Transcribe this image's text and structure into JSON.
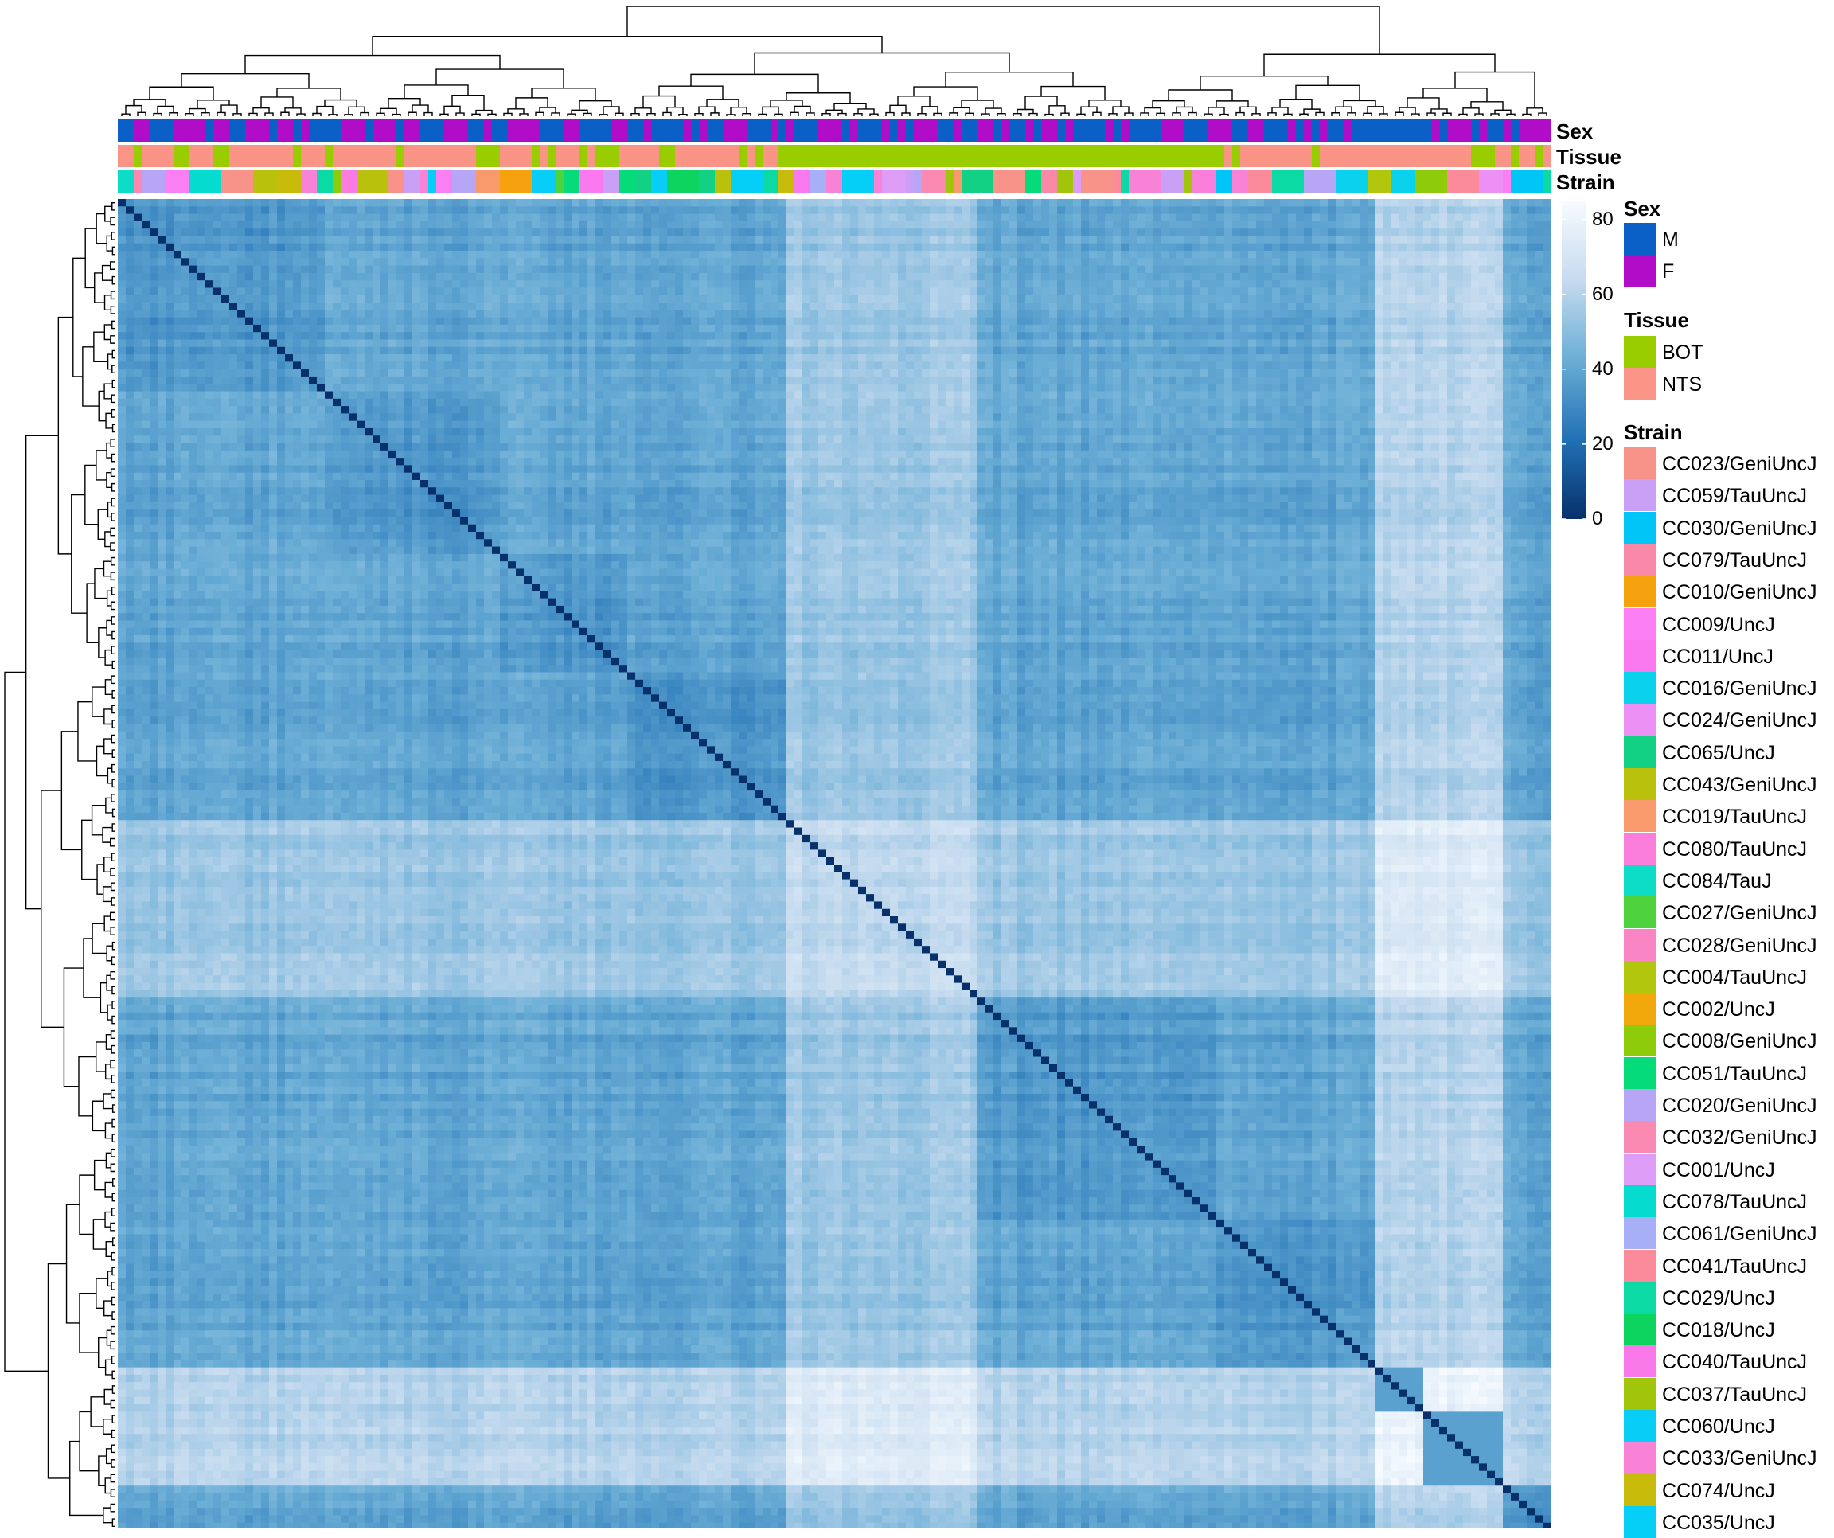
{
  "chart_data": {
    "type": "heatmap",
    "title": "",
    "subtitle": "",
    "xlabel": "",
    "ylabel": "",
    "colorbar": {
      "ticks": [
        0,
        20,
        40,
        60,
        80
      ],
      "min": 0,
      "max": 85,
      "colors": [
        "#08306b",
        "#2171b5",
        "#6baed6",
        "#c6dbef",
        "#f7fbff"
      ]
    },
    "row_dendrogram": true,
    "column_dendrogram": true,
    "annotations": [
      {
        "name": "Sex"
      },
      {
        "name": "Tissue"
      },
      {
        "name": "Strain"
      }
    ],
    "legends": {
      "sex": {
        "title": "Sex",
        "entries": [
          {
            "label": "M",
            "color": "#0a60c7"
          },
          {
            "label": "F",
            "color": "#b10dc9"
          }
        ]
      },
      "tissue": {
        "title": "Tissue",
        "entries": [
          {
            "label": "BOT",
            "color": "#9acd00"
          },
          {
            "label": "NTS",
            "color": "#fa9486"
          }
        ]
      },
      "strain": {
        "title": "Strain",
        "entries": [
          {
            "label": "CC023/GeniUncJ",
            "color": "#f8938a"
          },
          {
            "label": "CC059/TauUncJ",
            "color": "#c9a0f6"
          },
          {
            "label": "CC030/GeniUncJ",
            "color": "#00c5f7"
          },
          {
            "label": "CC079/TauUncJ",
            "color": "#fa88a8"
          },
          {
            "label": "CC010/GeniUncJ",
            "color": "#f6a20f"
          },
          {
            "label": "CC009/UncJ",
            "color": "#f97ff3"
          },
          {
            "label": "CC011/UncJ",
            "color": "#fb79ef"
          },
          {
            "label": "CC016/GeniUncJ",
            "color": "#0ad1ec"
          },
          {
            "label": "CC024/GeniUncJ",
            "color": "#ec90f6"
          },
          {
            "label": "CC065/UncJ",
            "color": "#12d185"
          },
          {
            "label": "CC043/GeniUncJ",
            "color": "#b9c10c"
          },
          {
            "label": "CC019/TauUncJ",
            "color": "#f99a6c"
          },
          {
            "label": "CC080/TauUncJ",
            "color": "#fb7ddc"
          },
          {
            "label": "CC084/TauJ",
            "color": "#0ddcc6"
          },
          {
            "label": "CC027/GeniUncJ",
            "color": "#4ed23d"
          },
          {
            "label": "CC028/GeniUncJ",
            "color": "#fa85c4"
          },
          {
            "label": "CC004/TauUncJ",
            "color": "#b1c60c"
          },
          {
            "label": "CC002/UncJ",
            "color": "#f2a80a"
          },
          {
            "label": "CC008/GeniUncJ",
            "color": "#8ecb0a"
          },
          {
            "label": "CC051/TauUncJ",
            "color": "#05db78"
          },
          {
            "label": "CC020/GeniUncJ",
            "color": "#b7a6f5"
          },
          {
            "label": "CC032/GeniUncJ",
            "color": "#fa8ab2"
          },
          {
            "label": "CC001/UncJ",
            "color": "#dd9cf5"
          },
          {
            "label": "CC078/TauUncJ",
            "color": "#06dbd0"
          },
          {
            "label": "CC061/GeniUncJ",
            "color": "#a7aff7"
          },
          {
            "label": "CC041/TauUncJ",
            "color": "#fb8a9a"
          },
          {
            "label": "CC029/UncJ",
            "color": "#0bdaa5"
          },
          {
            "label": "CC018/UncJ",
            "color": "#0dd45f"
          },
          {
            "label": "CC040/TauUncJ",
            "color": "#f979e9"
          },
          {
            "label": "CC037/TauUncJ",
            "color": "#a0c50a"
          },
          {
            "label": "CC060/UncJ",
            "color": "#08cdf6"
          },
          {
            "label": "CC033/GeniUncJ",
            "color": "#f883d6"
          },
          {
            "label": "CC074/UncJ",
            "color": "#c9bb0a"
          },
          {
            "label": "CC035/UncJ",
            "color": "#06cff7"
          }
        ]
      }
    }
  }
}
